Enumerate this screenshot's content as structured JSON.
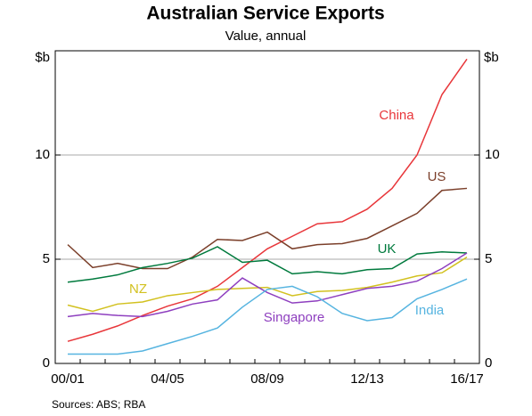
{
  "chart_data": {
    "type": "line",
    "title": "Australian Service Exports",
    "subtitle": "Value, annual",
    "y_unit": "$b",
    "source": "Sources:   ABS; RBA",
    "categories": [
      "00/01",
      null,
      null,
      null,
      "04/05",
      null,
      null,
      null,
      "08/09",
      null,
      null,
      null,
      "12/13",
      null,
      null,
      null,
      "16/17"
    ],
    "ylim": [
      0,
      15
    ],
    "yticks": [
      0,
      5,
      10
    ],
    "grid": true,
    "series": [
      {
        "name": "China",
        "color": "#e8363a",
        "values": [
          1.06,
          1.4,
          1.8,
          2.3,
          2.75,
          3.1,
          3.7,
          4.6,
          5.5,
          6.1,
          6.7,
          6.8,
          7.4,
          8.4,
          10.0,
          12.9,
          14.6
        ]
      },
      {
        "name": "US",
        "color": "#7b3f2a",
        "values": [
          5.7,
          4.6,
          4.8,
          4.55,
          4.55,
          5.1,
          5.95,
          5.9,
          6.3,
          5.5,
          5.7,
          5.75,
          6.0,
          6.6,
          7.2,
          8.3,
          8.4
        ]
      },
      {
        "name": "UK",
        "color": "#007a3d",
        "values": [
          3.9,
          4.05,
          4.25,
          4.6,
          4.8,
          5.05,
          5.6,
          4.85,
          4.95,
          4.3,
          4.4,
          4.3,
          4.5,
          4.55,
          5.25,
          5.35,
          5.3
        ]
      },
      {
        "name": "NZ",
        "color": "#d2c11f",
        "values": [
          2.8,
          2.5,
          2.85,
          2.95,
          3.25,
          3.4,
          3.55,
          3.6,
          3.65,
          3.25,
          3.45,
          3.5,
          3.65,
          3.9,
          4.2,
          4.35,
          5.1
        ]
      },
      {
        "name": "Singapore",
        "color": "#8e3fbf",
        "values": [
          2.25,
          2.4,
          2.3,
          2.25,
          2.5,
          2.85,
          3.05,
          4.1,
          3.4,
          2.9,
          3.0,
          3.3,
          3.6,
          3.7,
          3.95,
          4.55,
          5.3
        ]
      },
      {
        "name": "India",
        "color": "#56b4e0",
        "values": [
          0.45,
          0.45,
          0.45,
          0.6,
          0.95,
          1.3,
          1.7,
          2.7,
          3.55,
          3.7,
          3.2,
          2.4,
          2.05,
          2.2,
          3.1,
          3.55,
          4.05
        ]
      }
    ]
  }
}
